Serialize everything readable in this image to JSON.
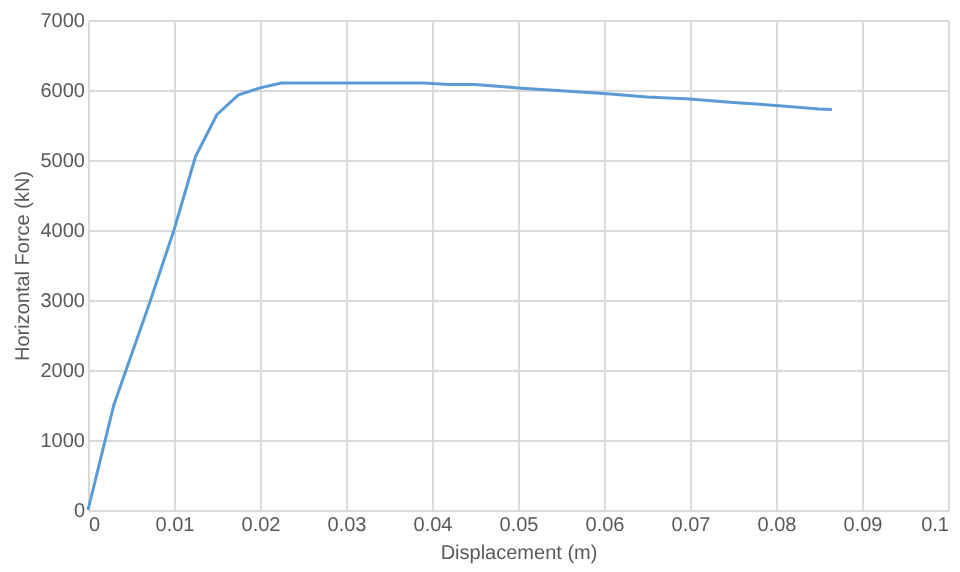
{
  "chart_data": {
    "type": "line",
    "xlabel": "Displacement (m)",
    "ylabel": "Horizontal Force (kN)",
    "x": [
      0,
      0.003,
      0.007,
      0.01,
      0.0125,
      0.015,
      0.0175,
      0.02,
      0.0225,
      0.03,
      0.039,
      0.042,
      0.045,
      0.05,
      0.055,
      0.06,
      0.065,
      0.07,
      0.075,
      0.08,
      0.085,
      0.0865
    ],
    "series": [
      {
        "color": "#5b9bd5",
        "values": [
          0,
          1500,
          2900,
          4000,
          5050,
          5650,
          5930,
          6030,
          6100,
          6100,
          6100,
          6080,
          6080,
          6030,
          5990,
          5950,
          5900,
          5870,
          5820,
          5780,
          5730,
          5720
        ]
      }
    ],
    "xlim": [
      0,
      0.1
    ],
    "xticks": [
      0,
      0.01,
      0.02,
      0.03,
      0.04,
      0.05,
      0.06,
      0.07,
      0.08,
      0.09,
      0.1
    ],
    "ylim": [
      0,
      7000
    ],
    "yticks": [
      0,
      1000,
      2000,
      3000,
      4000,
      5000,
      6000,
      7000
    ],
    "grid": true,
    "marker": "none",
    "line_style": "solid"
  }
}
